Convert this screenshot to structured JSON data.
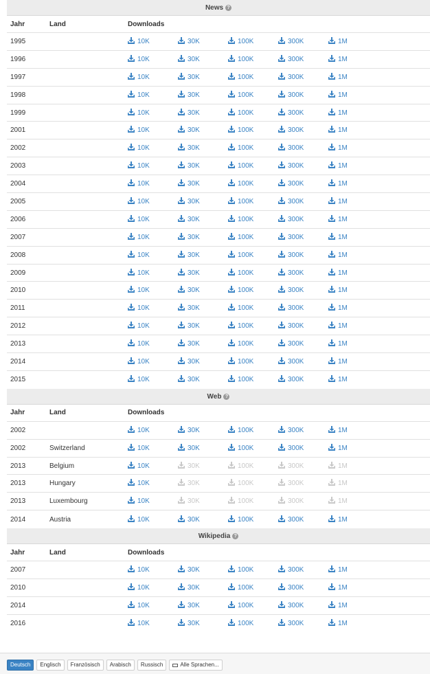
{
  "colors": {
    "link": "#3a83c4",
    "disabled": "#c8c8c8",
    "header_bg": "#ececec",
    "active_lang": "#3a83c4"
  },
  "help_icon": "?",
  "columns": {
    "year": "Jahr",
    "country": "Land",
    "downloads": "Downloads"
  },
  "sizes": [
    "10K",
    "30K",
    "100K",
    "300K",
    "1M"
  ],
  "sections": [
    {
      "title": "News",
      "rows": [
        {
          "year": "1995",
          "country": "",
          "enabled": [
            true,
            true,
            true,
            true,
            true
          ]
        },
        {
          "year": "1996",
          "country": "",
          "enabled": [
            true,
            true,
            true,
            true,
            true
          ]
        },
        {
          "year": "1997",
          "country": "",
          "enabled": [
            true,
            true,
            true,
            true,
            true
          ]
        },
        {
          "year": "1998",
          "country": "",
          "enabled": [
            true,
            true,
            true,
            true,
            true
          ]
        },
        {
          "year": "1999",
          "country": "",
          "enabled": [
            true,
            true,
            true,
            true,
            true
          ]
        },
        {
          "year": "2001",
          "country": "",
          "enabled": [
            true,
            true,
            true,
            true,
            true
          ]
        },
        {
          "year": "2002",
          "country": "",
          "enabled": [
            true,
            true,
            true,
            true,
            true
          ]
        },
        {
          "year": "2003",
          "country": "",
          "enabled": [
            true,
            true,
            true,
            true,
            true
          ]
        },
        {
          "year": "2004",
          "country": "",
          "enabled": [
            true,
            true,
            true,
            true,
            true
          ]
        },
        {
          "year": "2005",
          "country": "",
          "enabled": [
            true,
            true,
            true,
            true,
            true
          ]
        },
        {
          "year": "2006",
          "country": "",
          "enabled": [
            true,
            true,
            true,
            true,
            true
          ]
        },
        {
          "year": "2007",
          "country": "",
          "enabled": [
            true,
            true,
            true,
            true,
            true
          ]
        },
        {
          "year": "2008",
          "country": "",
          "enabled": [
            true,
            true,
            true,
            true,
            true
          ]
        },
        {
          "year": "2009",
          "country": "",
          "enabled": [
            true,
            true,
            true,
            true,
            true
          ]
        },
        {
          "year": "2010",
          "country": "",
          "enabled": [
            true,
            true,
            true,
            true,
            true
          ]
        },
        {
          "year": "2011",
          "country": "",
          "enabled": [
            true,
            true,
            true,
            true,
            true
          ]
        },
        {
          "year": "2012",
          "country": "",
          "enabled": [
            true,
            true,
            true,
            true,
            true
          ]
        },
        {
          "year": "2013",
          "country": "",
          "enabled": [
            true,
            true,
            true,
            true,
            true
          ]
        },
        {
          "year": "2014",
          "country": "",
          "enabled": [
            true,
            true,
            true,
            true,
            true
          ]
        },
        {
          "year": "2015",
          "country": "",
          "enabled": [
            true,
            true,
            true,
            true,
            true
          ]
        }
      ]
    },
    {
      "title": "Web",
      "rows": [
        {
          "year": "2002",
          "country": "",
          "enabled": [
            true,
            true,
            true,
            true,
            true
          ]
        },
        {
          "year": "2002",
          "country": "Switzerland",
          "enabled": [
            true,
            true,
            true,
            true,
            true
          ]
        },
        {
          "year": "2013",
          "country": "Belgium",
          "enabled": [
            true,
            false,
            false,
            false,
            false
          ]
        },
        {
          "year": "2013",
          "country": "Hungary",
          "enabled": [
            true,
            false,
            false,
            false,
            false
          ]
        },
        {
          "year": "2013",
          "country": "Luxembourg",
          "enabled": [
            true,
            false,
            false,
            false,
            false
          ]
        },
        {
          "year": "2014",
          "country": "Austria",
          "enabled": [
            true,
            true,
            true,
            true,
            true
          ]
        }
      ]
    },
    {
      "title": "Wikipedia",
      "rows": [
        {
          "year": "2007",
          "country": "",
          "enabled": [
            true,
            true,
            true,
            true,
            true
          ]
        },
        {
          "year": "2010",
          "country": "",
          "enabled": [
            true,
            true,
            true,
            true,
            true
          ]
        },
        {
          "year": "2014",
          "country": "",
          "enabled": [
            true,
            true,
            true,
            true,
            true
          ]
        },
        {
          "year": "2016",
          "country": "",
          "enabled": [
            true,
            true,
            true,
            true,
            true
          ]
        }
      ]
    }
  ],
  "languages": [
    {
      "label": "Deutsch",
      "active": true
    },
    {
      "label": "Englisch",
      "active": false
    },
    {
      "label": "Französisch",
      "active": false
    },
    {
      "label": "Arabisch",
      "active": false
    },
    {
      "label": "Russisch",
      "active": false
    },
    {
      "label": "Alle Sprachen...",
      "active": false,
      "icon": "keyboard-icon"
    }
  ]
}
